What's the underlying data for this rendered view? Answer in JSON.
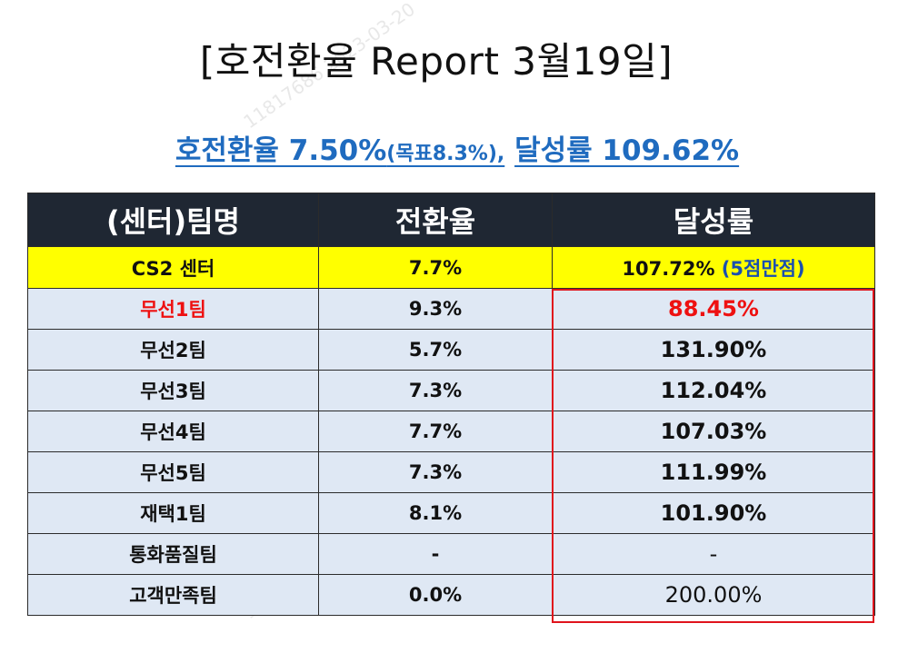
{
  "title": "[호전환율 Report 3월19일]",
  "subtitle": {
    "part1": "호전환율 7.50%",
    "part2": "(목표8.3%),",
    "part3": "달성률 109.62%"
  },
  "table": {
    "headers": [
      "(센터)팀명",
      "전환율",
      "달성률"
    ],
    "center": {
      "name": "CS2 센터",
      "conversion": "7.7%",
      "achievement": "107.72%",
      "note": "(5점만점)"
    },
    "rows": [
      {
        "team": "무선1팀",
        "conversion": "9.3%",
        "achievement": "88.45%"
      },
      {
        "team": "무선2팀",
        "conversion": "5.7%",
        "achievement": "131.90%"
      },
      {
        "team": "무선3팀",
        "conversion": "7.3%",
        "achievement": "112.04%"
      },
      {
        "team": "무선4팀",
        "conversion": "7.7%",
        "achievement": "107.03%"
      },
      {
        "team": "무선5팀",
        "conversion": "7.3%",
        "achievement": "111.99%"
      },
      {
        "team": "재택1팀",
        "conversion": "8.1%",
        "achievement": "101.90%"
      },
      {
        "team": "통화품질팀",
        "conversion": "-",
        "achievement": "-"
      },
      {
        "team": "고객만족팀",
        "conversion": "0.0%",
        "achievement": "200.00%"
      }
    ]
  },
  "watermark": "11817686 2023-03-20",
  "colors": {
    "header_bg": "#1f2733",
    "center_row_bg": "#ffff00",
    "team_row_bg": "#dfe8f4",
    "accent_blue": "#1f6bbf",
    "alert_red": "#ee1111"
  }
}
